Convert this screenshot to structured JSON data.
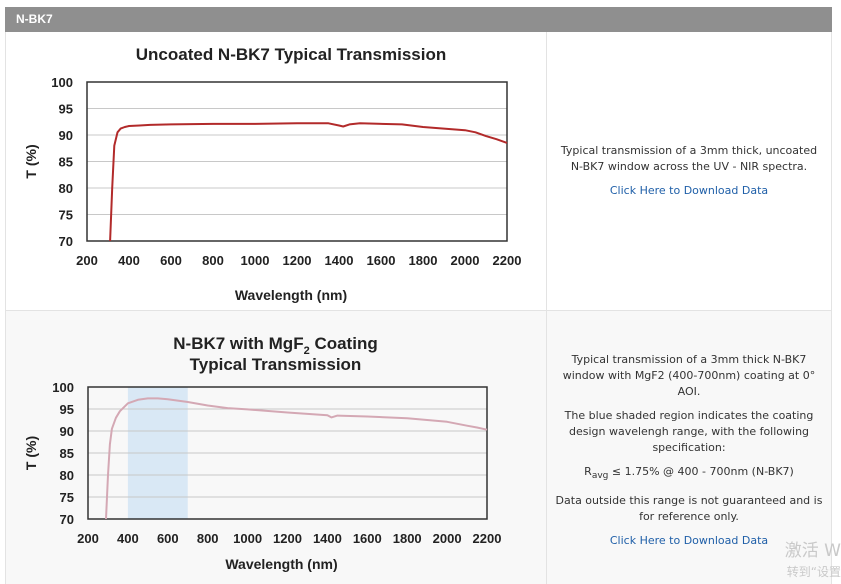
{
  "section": {
    "title": "N-BK7"
  },
  "rows": [
    {
      "description": "Typical transmission of a 3mm thick, uncoated N-BK7 window across the UV - NIR spectra.",
      "download_link": "Click Here to Download Data"
    },
    {
      "description_lines": [
        "Typical transmission of a 3mm thick N-BK7 window with MgF2 (400-700nm) coating at 0° AOI.",
        "The blue shaded region indicates the coating design wavelengh range, with the following specification:",
        "≤ 1.75% @ 400 - 700nm (N-BK7)",
        "Data outside this range is not guaranteed and is for reference only."
      ],
      "spec_symbol": "R",
      "spec_subscript": "avg",
      "download_link": "Click Here to Download Data"
    }
  ],
  "chart_data": [
    {
      "type": "line",
      "title": "Uncoated N-BK7 Typical Transmission",
      "xlabel": "Wavelength (nm)",
      "ylabel": "T (%)",
      "xlim": [
        200,
        2200
      ],
      "ylim": [
        70,
        100
      ],
      "xticks": [
        "200",
        "400",
        "600",
        "800",
        "1000",
        "1200",
        "1400",
        "1600",
        "1800",
        "2000",
        "2200"
      ],
      "yticks": [
        "70",
        "75",
        "80",
        "85",
        "90",
        "95",
        "100"
      ],
      "grid": true,
      "color": "#b22a2a",
      "x": [
        310,
        320,
        330,
        345,
        360,
        380,
        400,
        450,
        500,
        600,
        800,
        1000,
        1200,
        1350,
        1400,
        1420,
        1450,
        1500,
        1700,
        1800,
        1900,
        2000,
        2050,
        2100,
        2150,
        2200
      ],
      "y": [
        70,
        80,
        88,
        90.5,
        91.2,
        91.5,
        91.7,
        91.8,
        91.9,
        92.0,
        92.1,
        92.1,
        92.2,
        92.2,
        91.8,
        91.6,
        92.0,
        92.2,
        92.0,
        91.5,
        91.2,
        90.9,
        90.5,
        89.8,
        89.2,
        88.5
      ]
    },
    {
      "type": "line",
      "title_prefix": "N-BK7 with MgF",
      "title_sub": "2",
      "title_suffix": " Coating",
      "title_line2": "Typical Transmission",
      "xlabel": "Wavelength (nm)",
      "ylabel": "T (%)",
      "xlim": [
        200,
        2200
      ],
      "ylim": [
        70,
        100
      ],
      "xticks": [
        "200",
        "400",
        "600",
        "800",
        "1000",
        "1200",
        "1400",
        "1600",
        "1800",
        "2000",
        "2200"
      ],
      "yticks": [
        "70",
        "75",
        "80",
        "85",
        "90",
        "95",
        "100"
      ],
      "grid": true,
      "color": "#d4a8b4",
      "shaded_region": [
        400,
        700
      ],
      "shade_color": "#d9e8f5",
      "x": [
        290,
        300,
        310,
        320,
        340,
        360,
        400,
        450,
        500,
        550,
        600,
        700,
        800,
        900,
        1000,
        1200,
        1400,
        1420,
        1450,
        1600,
        1800,
        2000,
        2100,
        2150,
        2200
      ],
      "y": [
        70,
        80,
        87,
        90.5,
        93,
        94.5,
        96.3,
        97.1,
        97.4,
        97.4,
        97.2,
        96.6,
        95.8,
        95.2,
        94.9,
        94.2,
        93.6,
        93.1,
        93.5,
        93.3,
        92.9,
        92.1,
        91.2,
        90.8,
        90.3
      ]
    }
  ],
  "watermark": {
    "line1": "激活 W",
    "line2": "转到“设置"
  }
}
